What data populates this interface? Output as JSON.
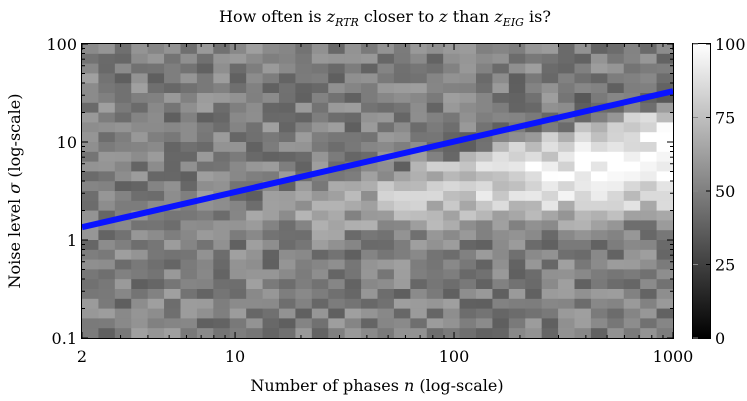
{
  "chart_data": {
    "type": "heatmap",
    "title": "How often is z_RTR closer to z than z_EIG is?",
    "title_parts": [
      "How often is ",
      "z",
      "RTR",
      " closer to ",
      "z",
      " than ",
      "z",
      "EIG",
      " is?"
    ],
    "xlabel": "Number of phases n (log-scale)",
    "xlabel_parts": [
      "Number of phases ",
      "n",
      " (log-scale)"
    ],
    "ylabel": "Noise level σ (log-scale)",
    "ylabel_parts": [
      "Noise level ",
      "σ",
      " (log-scale)"
    ],
    "x_scale": "log",
    "y_scale": "log",
    "xlim": [
      2,
      1000
    ],
    "ylim": [
      0.1,
      100
    ],
    "x_ticks": [
      {
        "value": 2,
        "label": "2"
      },
      {
        "value": 10,
        "label": "10"
      },
      {
        "value": 100,
        "label": "100"
      },
      {
        "value": 1000,
        "label": "1000"
      }
    ],
    "y_ticks": [
      {
        "value": 0.1,
        "label": "0.1"
      },
      {
        "value": 1,
        "label": "1"
      },
      {
        "value": 10,
        "label": "10"
      },
      {
        "value": 100,
        "label": "100"
      }
    ],
    "grid_cols": 36,
    "grid_rows": 30,
    "colorbar": {
      "min": 0,
      "max": 100,
      "ticks": [
        {
          "value": 0,
          "label": "0"
        },
        {
          "value": 25,
          "label": "25"
        },
        {
          "value": 50,
          "label": "50"
        },
        {
          "value": 75,
          "label": "75"
        },
        {
          "value": 100,
          "label": "100"
        }
      ],
      "colormap": "gray"
    },
    "baseline_percent": 50,
    "high_region": {
      "description_values": "cells near 90-100 percent",
      "lower_sigma_start": 1.0,
      "upper_sigma_end": 20
    },
    "line": {
      "color": "#0a14ff",
      "points": [
        {
          "x": 2,
          "y": 1.35
        },
        {
          "x": 1000,
          "y": 33
        }
      ]
    }
  }
}
